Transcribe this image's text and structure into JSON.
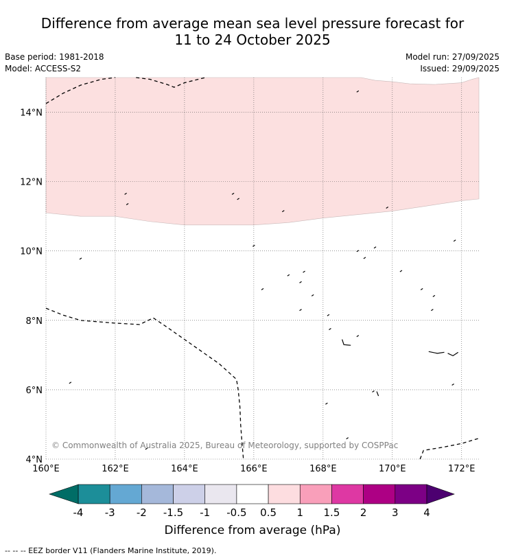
{
  "title": {
    "line1": "Difference from average mean sea level pressure forecast for",
    "line2": "11 to 24 October 2025"
  },
  "meta": {
    "base_period": "Base period: 1981-2018",
    "model": "Model: ACCESS-S2",
    "model_run": "Model run: 27/09/2025",
    "issued": "Issued: 29/09/2025"
  },
  "map": {
    "lon_range": [
      160,
      172.5
    ],
    "lat_range": [
      4,
      15
    ],
    "lat_labels": [
      {
        "value": 14,
        "text": "14°N"
      },
      {
        "value": 12,
        "text": "12°N"
      },
      {
        "value": 10,
        "text": "10°N"
      },
      {
        "value": 8,
        "text": "8°N"
      },
      {
        "value": 6,
        "text": "6°N"
      },
      {
        "value": 4,
        "text": "4°N"
      }
    ],
    "lon_labels": [
      {
        "value": 160,
        "text": "160°E"
      },
      {
        "value": 162,
        "text": "162°E"
      },
      {
        "value": 164,
        "text": "164°E"
      },
      {
        "value": 166,
        "text": "166°E"
      },
      {
        "value": 168,
        "text": "168°E"
      },
      {
        "value": 170,
        "text": "170°E"
      },
      {
        "value": 172,
        "text": "172°E"
      }
    ],
    "anomaly_region": {
      "category": "0.5 to 1",
      "color": "#fce0e0",
      "southern_boundary": [
        [
          160,
          11.1
        ],
        [
          161,
          11.0
        ],
        [
          162,
          11.0
        ],
        [
          163,
          10.85
        ],
        [
          164,
          10.75
        ],
        [
          165,
          10.75
        ],
        [
          166,
          10.75
        ],
        [
          167,
          10.82
        ],
        [
          168,
          10.95
        ],
        [
          169,
          11.05
        ],
        [
          170,
          11.15
        ],
        [
          171,
          11.3
        ],
        [
          172,
          11.45
        ],
        [
          172.5,
          11.5
        ]
      ],
      "northern_boundary": [
        [
          172.5,
          15.0
        ],
        [
          172.3,
          14.95
        ],
        [
          172,
          14.85
        ],
        [
          171.2,
          14.8
        ],
        [
          170.5,
          14.82
        ],
        [
          170,
          14.88
        ],
        [
          169.5,
          14.92
        ],
        [
          169.1,
          15.0
        ]
      ]
    },
    "eez_lines": [
      [
        [
          160,
          14.25
        ],
        [
          160.5,
          14.55
        ],
        [
          161,
          14.78
        ],
        [
          161.6,
          14.95
        ],
        [
          162,
          15.0
        ]
      ],
      [
        [
          162.6,
          15.0
        ],
        [
          163,
          14.95
        ],
        [
          163.5,
          14.8
        ],
        [
          163.7,
          14.72
        ],
        [
          164,
          14.85
        ],
        [
          164.6,
          15.0
        ]
      ],
      [
        [
          160,
          8.35
        ],
        [
          160.5,
          8.15
        ],
        [
          161,
          8.0
        ],
        [
          162,
          7.92
        ],
        [
          162.7,
          7.88
        ],
        [
          163.1,
          8.07
        ],
        [
          163.5,
          7.8
        ],
        [
          164,
          7.45
        ],
        [
          164.5,
          7.1
        ],
        [
          165,
          6.75
        ],
        [
          165.5,
          6.3
        ],
        [
          165.55,
          6.0
        ],
        [
          165.6,
          5.5
        ],
        [
          165.62,
          5.0
        ],
        [
          165.65,
          4.6
        ],
        [
          165.7,
          4.0
        ]
      ],
      [
        [
          170.8,
          4.0
        ],
        [
          170.9,
          4.25
        ],
        [
          171.5,
          4.35
        ],
        [
          172,
          4.45
        ],
        [
          172.5,
          4.6
        ]
      ]
    ],
    "copyright": "© Commonwealth of Australia 2025, Bureau of Meteorology, supported by COSPPac"
  },
  "legend": {
    "labels": [
      "-4",
      "-3",
      "-2",
      "-1.5",
      "-1",
      "-0.5",
      "0.5",
      "1",
      "1.5",
      "2",
      "3",
      "4"
    ],
    "colors": [
      "#1c8e99",
      "#64a8d3",
      "#a5b8da",
      "#cdd0e8",
      "#eae7ef",
      "#ffffff",
      "#fddde0",
      "#f99fba",
      "#de38a3",
      "#ad0084",
      "#7c0085"
    ],
    "low_extend_color": "#006d66",
    "high_extend_color": "#4c0070",
    "title": "Difference from average (hPa)"
  },
  "footer": "--  --  -- EEZ border V11 (Flanders Marine Institute, 2019)."
}
